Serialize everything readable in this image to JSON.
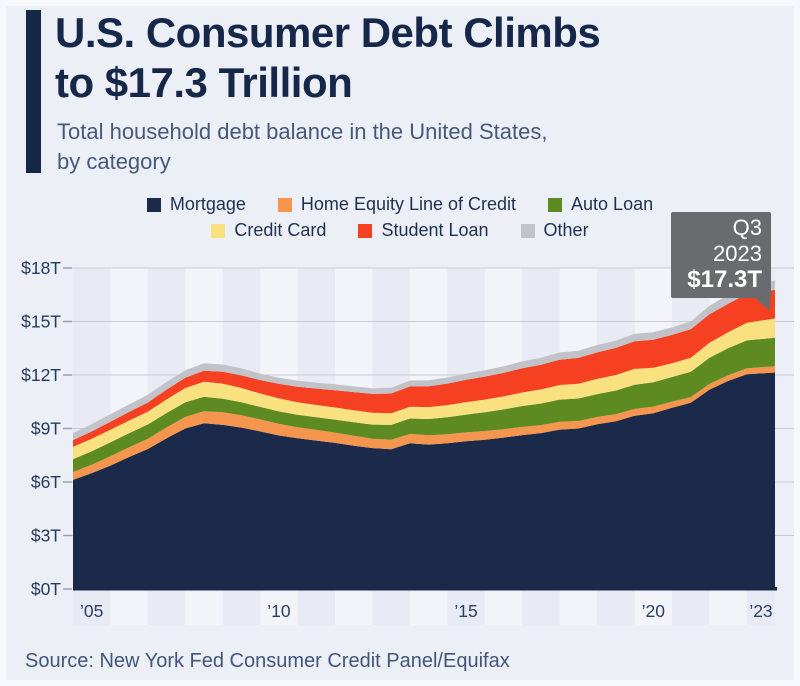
{
  "header": {
    "title_line1": "U.S. Consumer Debt Climbs",
    "title_line2": "to $17.3 Trillion",
    "subtitle_line1": "Total household debt balance in the United States,",
    "subtitle_line2": "by category"
  },
  "callout": {
    "quarter": "Q3 2023",
    "value": "$17.3T"
  },
  "source": "Source: New York Fed Consumer Credit Panel/Equifax",
  "colors": {
    "accent": "#16284a",
    "title_text": "#16284a",
    "subtitle_text": "#46587b",
    "background": "#edeff6",
    "stripe_dark": "#e8eaf4",
    "stripe_light": "#f2f4fa",
    "gridline": "#c7cad5",
    "tick": "#98a1b3",
    "axis": "#1b2a4a",
    "callout_bg": "#6a6b6e",
    "callout_text": "#ffffff",
    "legend_text": "#1e3050",
    "source_text": "#42567a"
  },
  "chart_data": {
    "type": "area",
    "stacked": true,
    "title": "U.S. Consumer Debt Climbs to $17.3 Trillion",
    "subtitle": "Total household debt balance in the United States, by category",
    "unit": "trillion USD",
    "xlim": [
      2005,
      2023.75
    ],
    "ylim": [
      0,
      18
    ],
    "grid": true,
    "legend_position": "top",
    "x": [
      2005.0,
      2005.5,
      2006.0,
      2006.5,
      2007.0,
      2007.5,
      2008.0,
      2008.5,
      2009.0,
      2009.5,
      2010.0,
      2010.5,
      2011.0,
      2011.5,
      2012.0,
      2012.5,
      2013.0,
      2013.5,
      2014.0,
      2014.5,
      2015.0,
      2015.5,
      2016.0,
      2016.5,
      2017.0,
      2017.5,
      2018.0,
      2018.5,
      2019.0,
      2019.5,
      2020.0,
      2020.5,
      2021.0,
      2021.5,
      2022.0,
      2022.5,
      2023.0,
      2023.75
    ],
    "series": [
      {
        "name": "Mortgage",
        "color": "#1b2a4a",
        "values": [
          6.12,
          6.5,
          6.92,
          7.4,
          7.85,
          8.45,
          9.0,
          9.29,
          9.2,
          9.05,
          8.84,
          8.61,
          8.45,
          8.32,
          8.19,
          8.03,
          7.9,
          7.84,
          8.17,
          8.1,
          8.17,
          8.28,
          8.37,
          8.49,
          8.63,
          8.74,
          8.94,
          9.0,
          9.24,
          9.41,
          9.71,
          9.86,
          10.16,
          10.44,
          11.18,
          11.67,
          12.04,
          12.14
        ]
      },
      {
        "name": "Home Equity Line of Credit",
        "color": "#f6954e",
        "values": [
          0.44,
          0.47,
          0.52,
          0.55,
          0.58,
          0.61,
          0.65,
          0.68,
          0.71,
          0.69,
          0.67,
          0.65,
          0.62,
          0.6,
          0.58,
          0.56,
          0.53,
          0.53,
          0.53,
          0.52,
          0.51,
          0.5,
          0.49,
          0.47,
          0.46,
          0.45,
          0.44,
          0.42,
          0.41,
          0.4,
          0.39,
          0.37,
          0.35,
          0.32,
          0.32,
          0.32,
          0.34,
          0.35
        ]
      },
      {
        "name": "Auto Loan",
        "color": "#5d8b21",
        "values": [
          0.72,
          0.75,
          0.78,
          0.79,
          0.8,
          0.81,
          0.82,
          0.81,
          0.76,
          0.73,
          0.7,
          0.7,
          0.7,
          0.71,
          0.73,
          0.76,
          0.79,
          0.83,
          0.86,
          0.91,
          0.95,
          1.0,
          1.05,
          1.11,
          1.17,
          1.21,
          1.24,
          1.26,
          1.28,
          1.32,
          1.35,
          1.36,
          1.38,
          1.42,
          1.47,
          1.52,
          1.56,
          1.6
        ]
      },
      {
        "name": "Credit Card",
        "color": "#fae180",
        "values": [
          0.69,
          0.7,
          0.71,
          0.71,
          0.72,
          0.76,
          0.8,
          0.84,
          0.85,
          0.8,
          0.75,
          0.73,
          0.7,
          0.69,
          0.68,
          0.67,
          0.66,
          0.66,
          0.66,
          0.67,
          0.68,
          0.7,
          0.71,
          0.73,
          0.76,
          0.79,
          0.82,
          0.83,
          0.85,
          0.87,
          0.89,
          0.82,
          0.77,
          0.79,
          0.84,
          0.89,
          0.99,
          1.08
        ]
      },
      {
        "name": "Student Loan",
        "color": "#f54021",
        "values": [
          0.38,
          0.41,
          0.45,
          0.48,
          0.51,
          0.55,
          0.58,
          0.62,
          0.66,
          0.71,
          0.76,
          0.81,
          0.87,
          0.92,
          0.97,
          1.02,
          1.06,
          1.1,
          1.14,
          1.17,
          1.21,
          1.25,
          1.29,
          1.32,
          1.36,
          1.39,
          1.42,
          1.45,
          1.49,
          1.52,
          1.55,
          1.57,
          1.59,
          1.59,
          1.6,
          1.6,
          1.61,
          1.6
        ]
      },
      {
        "name": "Other",
        "color": "#c2c3c8",
        "values": [
          0.4,
          0.41,
          0.42,
          0.42,
          0.43,
          0.43,
          0.42,
          0.42,
          0.41,
          0.39,
          0.36,
          0.35,
          0.34,
          0.33,
          0.33,
          0.32,
          0.32,
          0.33,
          0.33,
          0.34,
          0.34,
          0.35,
          0.36,
          0.37,
          0.38,
          0.39,
          0.4,
          0.4,
          0.41,
          0.41,
          0.42,
          0.42,
          0.42,
          0.44,
          0.47,
          0.49,
          0.51,
          0.53
        ]
      }
    ],
    "y_ticks": [
      {
        "value": 0,
        "label": "$0T"
      },
      {
        "value": 3,
        "label": "$3T"
      },
      {
        "value": 6,
        "label": "$6T"
      },
      {
        "value": 9,
        "label": "$9T"
      },
      {
        "value": 12,
        "label": "$12T"
      },
      {
        "value": 15,
        "label": "$15T"
      },
      {
        "value": 18,
        "label": "$18T"
      }
    ],
    "x_ticks": [
      {
        "year": 2005,
        "label": "’05"
      },
      {
        "year": 2010,
        "label": "’10"
      },
      {
        "year": 2015,
        "label": "’15"
      },
      {
        "year": 2020,
        "label": "’20"
      },
      {
        "year": 2023,
        "label": "’23"
      }
    ],
    "annotation": {
      "label": "Q3 2023",
      "value_label": "$17.3T",
      "total": 17.3
    }
  }
}
